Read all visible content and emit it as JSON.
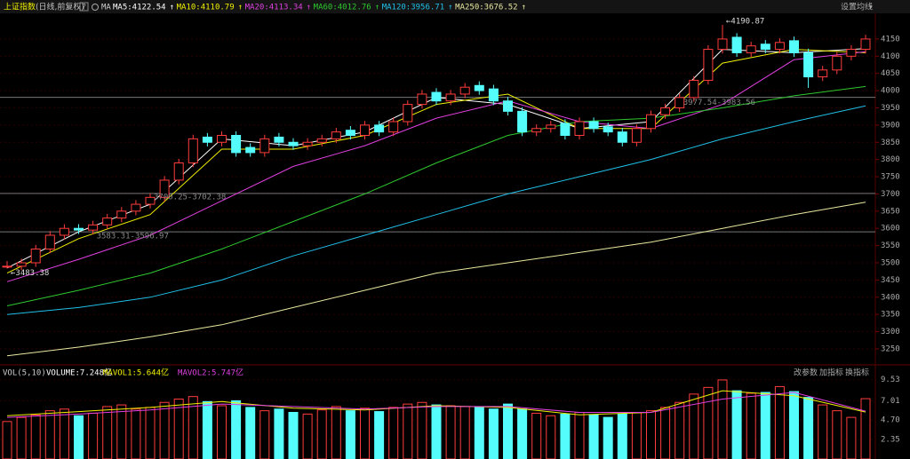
{
  "chart_data": {
    "type": "candlestick",
    "title": "上证指数",
    "subtitle": "(日线,前复权)",
    "ma_label": "MA",
    "settings_button": "设置均线",
    "open": [
      3488,
      3490,
      3500,
      3540,
      3580,
      3600,
      3595,
      3610,
      3630,
      3650,
      3670,
      3690,
      3740,
      3790,
      3865,
      3850,
      3870,
      3835,
      3820,
      3865,
      3850,
      3840,
      3850,
      3860,
      3885,
      3870,
      3900,
      3880,
      3910,
      3960,
      3995,
      3970,
      3990,
      4015,
      4005,
      3970,
      3940,
      3880,
      3890,
      3905,
      3870,
      3910,
      3895,
      3880,
      3850,
      3890,
      3930,
      3950,
      3980,
      4030,
      4120,
      4155,
      4110,
      4135,
      4120,
      4145,
      4110,
      4040,
      4060,
      4100,
      4120
    ],
    "close": [
      3490,
      3500,
      3540,
      3580,
      3600,
      3595,
      3610,
      3630,
      3650,
      3670,
      3690,
      3740,
      3790,
      3860,
      3850,
      3870,
      3820,
      3820,
      3860,
      3850,
      3840,
      3850,
      3860,
      3880,
      3870,
      3900,
      3880,
      3910,
      3960,
      3990,
      3970,
      3990,
      4010,
      4000,
      3970,
      3940,
      3880,
      3890,
      3900,
      3870,
      3910,
      3890,
      3880,
      3850,
      3890,
      3930,
      3950,
      3980,
      4030,
      4120,
      4150,
      4110,
      4130,
      4120,
      4140,
      4110,
      4040,
      4060,
      4100,
      4120,
      4150
    ],
    "high": [
      3505,
      3512,
      3552,
      3592,
      3612,
      3612,
      3622,
      3642,
      3662,
      3682,
      3702,
      3752,
      3802,
      3872,
      3877,
      3882,
      3882,
      3847,
      3872,
      3877,
      3862,
      3862,
      3872,
      3892,
      3897,
      3912,
      3912,
      3922,
      3972,
      4002,
      4007,
      4002,
      4022,
      4027,
      4017,
      3982,
      3952,
      3902,
      3912,
      3917,
      3922,
      3922,
      3907,
      3892,
      3902,
      3942,
      3962,
      3992,
      4042,
      4132,
      4190.87,
      4167,
      4142,
      4147,
      4152,
      4157,
      4122,
      4072,
      4112,
      4132,
      4162
    ],
    "low": [
      3483.38,
      3478,
      3488,
      3528,
      3568,
      3583.31,
      3583,
      3598,
      3618,
      3638,
      3658,
      3678,
      3728,
      3778,
      3838,
      3838,
      3808,
      3808,
      3808,
      3838,
      3828,
      3828,
      3838,
      3848,
      3858,
      3858,
      3868,
      3868,
      3898,
      3948,
      3958,
      3958,
      3978,
      3988,
      3958,
      3928,
      3868,
      3868,
      3878,
      3858,
      3858,
      3878,
      3868,
      3838,
      3838,
      3878,
      3918,
      3938,
      3968,
      4018,
      4108,
      4098,
      4098,
      4108,
      4108,
      4098,
      4008,
      4028,
      4048,
      4088,
      4108
    ],
    "up_color": "#ff3c3c",
    "down_color": "#54fcfc",
    "ylim": [
      3206,
      4222
    ],
    "yticks": [
      3250,
      3300,
      3350,
      3400,
      3450,
      3500,
      3550,
      3600,
      3650,
      3700,
      3750,
      3800,
      3850,
      3900,
      3950,
      4000,
      4050,
      4100,
      4150
    ],
    "grid": true,
    "ma": [
      {
        "name": "MA5:4122.54",
        "color": "#ffffff",
        "x": [
          0,
          5,
          10,
          15,
          20,
          25,
          30,
          35,
          40,
          45,
          50,
          55,
          60
        ],
        "values": [
          3485,
          3590,
          3670,
          3860,
          3840,
          3880,
          3980,
          3960,
          3890,
          3910,
          4120,
          4110,
          4122
        ]
      },
      {
        "name": "MA10:4110.79",
        "color": "#f0f000",
        "x": [
          0,
          5,
          10,
          15,
          20,
          25,
          30,
          35,
          40,
          45,
          50,
          55,
          60
        ],
        "values": [
          3470,
          3570,
          3640,
          3830,
          3830,
          3870,
          3960,
          3990,
          3890,
          3890,
          4080,
          4120,
          4110
        ]
      },
      {
        "name": "MA20:4113.34",
        "color": "#e040e0",
        "x": [
          0,
          5,
          10,
          15,
          20,
          25,
          30,
          35,
          40,
          45,
          50,
          55,
          60
        ],
        "values": [
          3445,
          3510,
          3580,
          3680,
          3780,
          3840,
          3920,
          3970,
          3910,
          3890,
          3960,
          4090,
          4113
        ]
      },
      {
        "name": "MA60:4012.76",
        "color": "#2ec82e",
        "x": [
          0,
          5,
          10,
          15,
          20,
          25,
          30,
          35,
          40,
          45,
          50,
          55,
          60
        ],
        "values": [
          3375,
          3420,
          3470,
          3540,
          3620,
          3700,
          3790,
          3870,
          3910,
          3920,
          3950,
          3985,
          4012
        ]
      },
      {
        "name": "MA120:3956.71",
        "color": "#20c0e8",
        "x": [
          0,
          5,
          10,
          15,
          20,
          25,
          30,
          35,
          40,
          45,
          50,
          55,
          60
        ],
        "values": [
          3350,
          3370,
          3400,
          3450,
          3520,
          3580,
          3640,
          3700,
          3750,
          3800,
          3860,
          3910,
          3956
        ]
      },
      {
        "name": "MA250:3676.52",
        "color": "#e8e8a0",
        "x": [
          0,
          5,
          10,
          15,
          20,
          25,
          30,
          35,
          40,
          45,
          50,
          55,
          60
        ],
        "values": [
          3230,
          3255,
          3285,
          3320,
          3370,
          3420,
          3470,
          3500,
          3530,
          3560,
          3600,
          3640,
          3676
        ]
      }
    ],
    "hlines": [
      3590,
      3701.3,
      3980.5
    ],
    "annotations": [
      "←4190.87",
      "←3483.38",
      "3583.31-3596.97",
      "3700.25-3702.38",
      "3977.54-3983.56"
    ],
    "volume_title": "VOL(5,10)",
    "volume_label": "VOLUME:7.248亿",
    "volume_buttons": [
      "改参数",
      "加指标",
      "换指标"
    ],
    "volume": [
      4.5,
      5.0,
      5.3,
      5.8,
      6.0,
      5.2,
      5.5,
      6.3,
      6.5,
      6.0,
      6.2,
      6.8,
      7.2,
      7.5,
      6.9,
      6.4,
      7.0,
      6.2,
      5.8,
      6.0,
      5.6,
      5.4,
      5.9,
      6.3,
      5.8,
      6.1,
      5.7,
      6.2,
      6.6,
      6.8,
      6.5,
      6.4,
      6.3,
      6.2,
      6.0,
      6.6,
      6.0,
      5.5,
      5.2,
      5.4,
      5.6,
      5.3,
      5.0,
      5.4,
      5.6,
      5.8,
      6.2,
      6.8,
      7.8,
      8.6,
      9.5,
      8.2,
      7.9,
      8.0,
      8.7,
      8.1,
      7.4,
      6.5,
      5.8,
      5.0,
      7.248
    ],
    "volume_ylim": [
      0,
      11.2
    ],
    "volume_yticks": [
      9.53,
      7.01,
      {
        "value": 4.7,
        "label": "4.70"
      },
      2.35
    ],
    "volume_ma": [
      {
        "name": "MAVOL1:5.644亿",
        "color": "#f0f000",
        "x": [
          0,
          5,
          10,
          15,
          20,
          25,
          30,
          35,
          40,
          45,
          50,
          55,
          60
        ],
        "values": [
          5.2,
          5.7,
          6.2,
          6.9,
          6.1,
          5.9,
          6.4,
          6.2,
          5.3,
          5.6,
          8.2,
          7.6,
          5.644
        ]
      },
      {
        "name": "MAVOL2:5.747亿",
        "color": "#e040e0",
        "x": [
          0,
          5,
          10,
          15,
          20,
          25,
          30,
          35,
          40,
          45,
          50,
          55,
          60
        ],
        "values": [
          5.0,
          5.4,
          5.9,
          6.6,
          6.3,
          6.0,
          6.3,
          6.3,
          5.6,
          5.6,
          7.2,
          8.0,
          5.747
        ]
      }
    ]
  }
}
